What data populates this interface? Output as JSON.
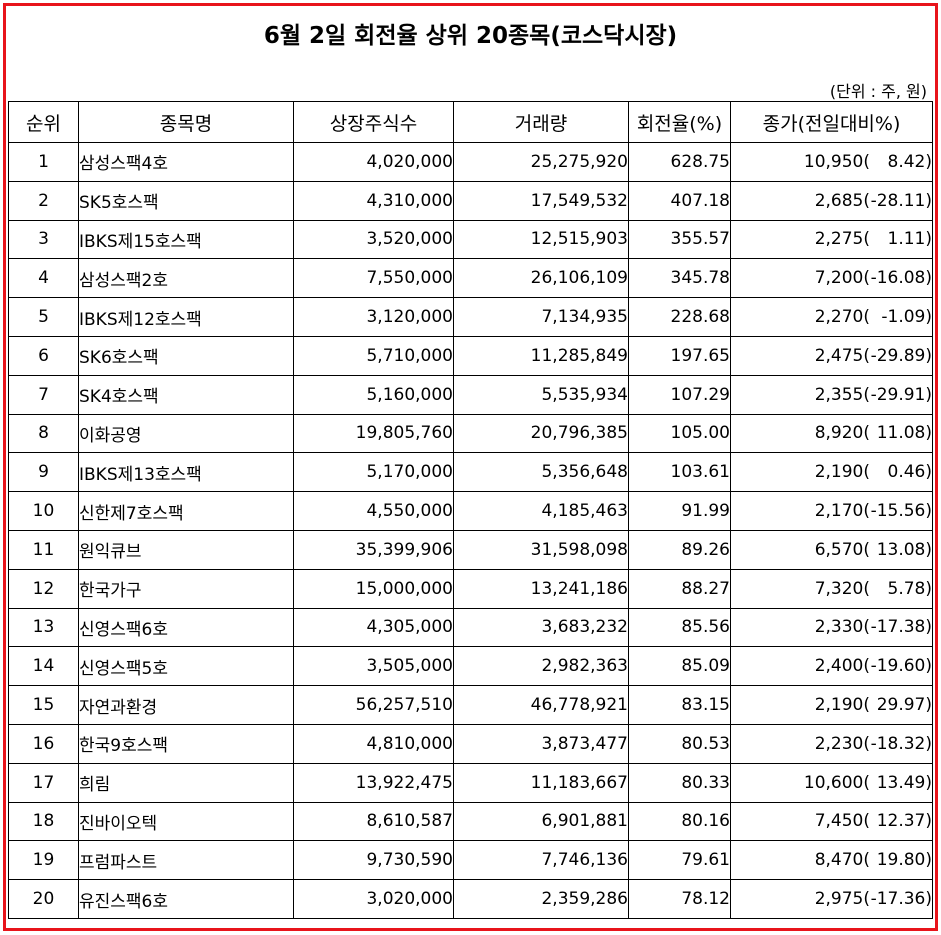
{
  "title": "6월 2일 회전율 상위 20종목(코스닥시장)",
  "unit": "(단위 : 주, 원)",
  "columns": [
    "순위",
    "종목명",
    "상장주식수",
    "거래량",
    "회전율(%)",
    "종가(전일대비%)"
  ],
  "rows": [
    {
      "rank": "1",
      "name": "삼성스팩4호",
      "listed": "4,020,000",
      "volume": "25,275,920",
      "turnover": "628.75",
      "close": "10,950(",
      "change": "8.42)"
    },
    {
      "rank": "2",
      "name": "SK5호스팩",
      "listed": "4,310,000",
      "volume": "17,549,532",
      "turnover": "407.18",
      "close": "2,685(",
      "change": "-28.11)"
    },
    {
      "rank": "3",
      "name": "IBKS제15호스팩",
      "listed": "3,520,000",
      "volume": "12,515,903",
      "turnover": "355.57",
      "close": "2,275(",
      "change": "1.11)"
    },
    {
      "rank": "4",
      "name": "삼성스팩2호",
      "listed": "7,550,000",
      "volume": "26,106,109",
      "turnover": "345.78",
      "close": "7,200(",
      "change": "-16.08)"
    },
    {
      "rank": "5",
      "name": "IBKS제12호스팩",
      "listed": "3,120,000",
      "volume": "7,134,935",
      "turnover": "228.68",
      "close": "2,270(",
      "change": "-1.09)"
    },
    {
      "rank": "6",
      "name": "SK6호스팩",
      "listed": "5,710,000",
      "volume": "11,285,849",
      "turnover": "197.65",
      "close": "2,475(",
      "change": "-29.89)"
    },
    {
      "rank": "7",
      "name": "SK4호스팩",
      "listed": "5,160,000",
      "volume": "5,535,934",
      "turnover": "107.29",
      "close": "2,355(",
      "change": "-29.91)"
    },
    {
      "rank": "8",
      "name": "이화공영",
      "listed": "19,805,760",
      "volume": "20,796,385",
      "turnover": "105.00",
      "close": "8,920(",
      "change": "11.08)"
    },
    {
      "rank": "9",
      "name": "IBKS제13호스팩",
      "listed": "5,170,000",
      "volume": "5,356,648",
      "turnover": "103.61",
      "close": "2,190(",
      "change": "0.46)"
    },
    {
      "rank": "10",
      "name": "신한제7호스팩",
      "listed": "4,550,000",
      "volume": "4,185,463",
      "turnover": "91.99",
      "close": "2,170(",
      "change": "-15.56)"
    },
    {
      "rank": "11",
      "name": "원익큐브",
      "listed": "35,399,906",
      "volume": "31,598,098",
      "turnover": "89.26",
      "close": "6,570(",
      "change": "13.08)"
    },
    {
      "rank": "12",
      "name": "한국가구",
      "listed": "15,000,000",
      "volume": "13,241,186",
      "turnover": "88.27",
      "close": "7,320(",
      "change": "5.78)"
    },
    {
      "rank": "13",
      "name": "신영스팩6호",
      "listed": "4,305,000",
      "volume": "3,683,232",
      "turnover": "85.56",
      "close": "2,330(",
      "change": "-17.38)"
    },
    {
      "rank": "14",
      "name": "신영스팩5호",
      "listed": "3,505,000",
      "volume": "2,982,363",
      "turnover": "85.09",
      "close": "2,400(",
      "change": "-19.60)"
    },
    {
      "rank": "15",
      "name": "자연과환경",
      "listed": "56,257,510",
      "volume": "46,778,921",
      "turnover": "83.15",
      "close": "2,190(",
      "change": "29.97)"
    },
    {
      "rank": "16",
      "name": "한국9호스팩",
      "listed": "4,810,000",
      "volume": "3,873,477",
      "turnover": "80.53",
      "close": "2,230(",
      "change": "-18.32)"
    },
    {
      "rank": "17",
      "name": "희림",
      "listed": "13,922,475",
      "volume": "11,183,667",
      "turnover": "80.33",
      "close": "10,600(",
      "change": "13.49)"
    },
    {
      "rank": "18",
      "name": "진바이오텍",
      "listed": "8,610,587",
      "volume": "6,901,881",
      "turnover": "80.16",
      "close": "7,450(",
      "change": "12.37)"
    },
    {
      "rank": "19",
      "name": "프럼파스트",
      "listed": "9,730,590",
      "volume": "7,746,136",
      "turnover": "79.61",
      "close": "8,470(",
      "change": "19.80)"
    },
    {
      "rank": "20",
      "name": "유진스팩6호",
      "listed": "3,020,000",
      "volume": "2,359,286",
      "turnover": "78.12",
      "close": "2,975(",
      "change": "-17.36)"
    }
  ],
  "colors": {
    "frame": "#e8141b",
    "grid": "#000000",
    "text": "#000000"
  }
}
